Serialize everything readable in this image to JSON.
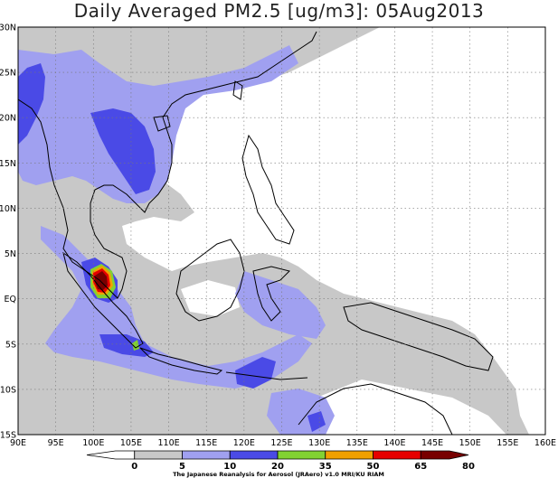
{
  "title": "Daily Averaged PM2.5 [ug/m3]: 05Aug2013",
  "credit": "The Japanese Reanalysis for Aerosol (JRAero) v1.0 MRI/KU RIAM",
  "map": {
    "lon_range": [
      90,
      160
    ],
    "lat_range": [
      -15,
      30
    ],
    "lat_ticks": [
      {
        "value": 30,
        "label": "30N"
      },
      {
        "value": 25,
        "label": "25N"
      },
      {
        "value": 20,
        "label": "20N"
      },
      {
        "value": 15,
        "label": "15N"
      },
      {
        "value": 10,
        "label": "10N"
      },
      {
        "value": 5,
        "label": "5N"
      },
      {
        "value": 0,
        "label": "EQ"
      },
      {
        "value": -5,
        "label": "5S"
      },
      {
        "value": -10,
        "label": "10S"
      },
      {
        "value": -15,
        "label": "15S"
      }
    ],
    "lon_ticks": [
      {
        "value": 90,
        "label": "90E"
      },
      {
        "value": 95,
        "label": "95E"
      },
      {
        "value": 100,
        "label": "100E"
      },
      {
        "value": 105,
        "label": "105E"
      },
      {
        "value": 110,
        "label": "110E"
      },
      {
        "value": 115,
        "label": "115E"
      },
      {
        "value": 120,
        "label": "120E"
      },
      {
        "value": 125,
        "label": "125E"
      },
      {
        "value": 130,
        "label": "130E"
      },
      {
        "value": 135,
        "label": "135E"
      },
      {
        "value": 140,
        "label": "140E"
      },
      {
        "value": 145,
        "label": "145E"
      },
      {
        "value": 150,
        "label": "150E"
      },
      {
        "value": 155,
        "label": "155E"
      },
      {
        "value": 160,
        "label": "160E"
      }
    ],
    "grid": "dotted"
  },
  "colorbar": {
    "levels": [
      "0",
      "5",
      "10",
      "20",
      "35",
      "50",
      "65",
      "80"
    ],
    "colors": [
      "#ffffff",
      "#c8c8c8",
      "#a0a0f0",
      "#4a4ae6",
      "#82d232",
      "#f0a000",
      "#e60000",
      "#780000"
    ]
  },
  "fields": {
    "level_5_color": "#c8c8c8",
    "level_10_color": "#a0a0f0",
    "level_20_color": "#4a4ae6",
    "level_35_color": "#82d232",
    "level_50_color": "#f0a000",
    "level_65_color": "#e60000",
    "level_80_color": "#780000"
  }
}
